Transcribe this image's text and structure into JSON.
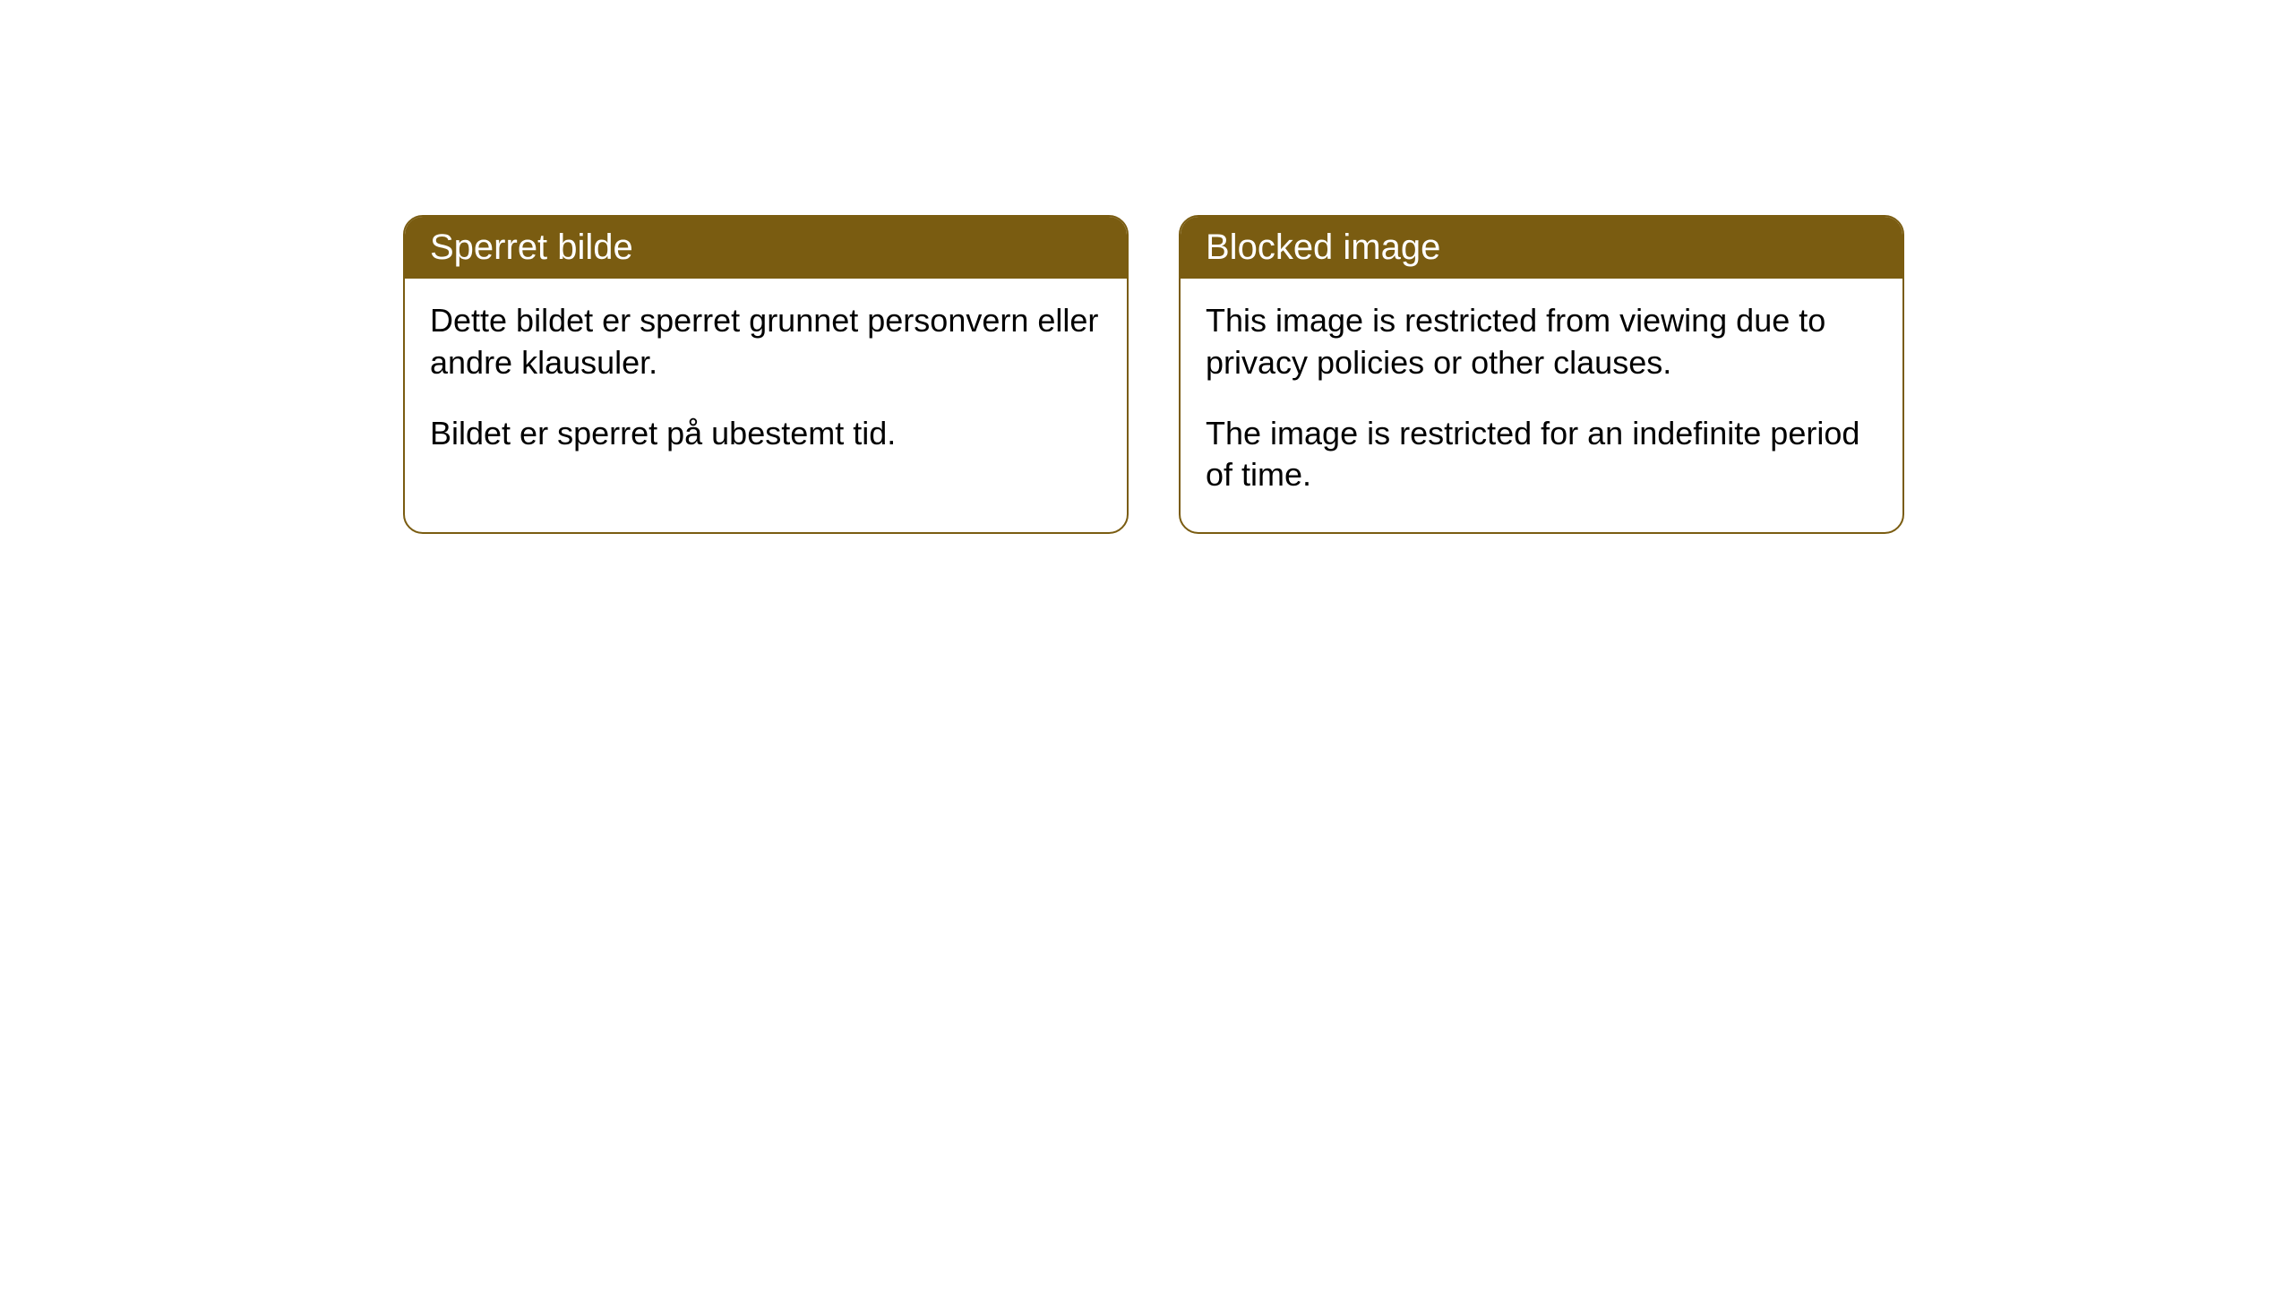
{
  "cards": [
    {
      "title": "Sperret bilde",
      "paragraph1": "Dette bildet er sperret grunnet personvern eller andre klausuler.",
      "paragraph2": "Bildet er sperret på ubestemt tid."
    },
    {
      "title": "Blocked image",
      "paragraph1": "This image is restricted from viewing due to privacy policies or other clauses.",
      "paragraph2": "The image is restricted for an indefinite period of time."
    }
  ],
  "style": {
    "header_background": "#7a5c11",
    "header_text_color": "#ffffff",
    "border_color": "#7a5c11",
    "body_background": "#ffffff",
    "body_text_color": "#000000",
    "border_radius": 22,
    "title_fontsize": 40,
    "body_fontsize": 36
  }
}
